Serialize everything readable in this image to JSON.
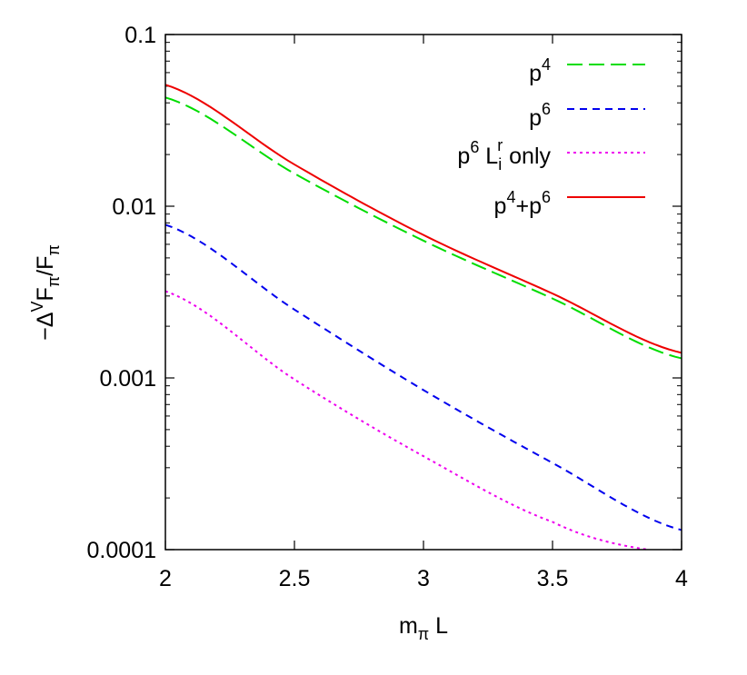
{
  "chart_data": {
    "type": "line",
    "title": "",
    "xlabel": {
      "main": "m",
      "sub": "π",
      "rest": " L"
    },
    "ylabel": {
      "pre": "−Δ",
      "sup": "V",
      "mid": "F",
      "sub1": "π",
      "slash": "/F",
      "sub2": "π"
    },
    "xlim": [
      2,
      4
    ],
    "ylim": [
      0.0001,
      0.1
    ],
    "y_scale": "log",
    "x_ticks": [
      {
        "value": 2,
        "label": "2"
      },
      {
        "value": 2.5,
        "label": "2.5"
      },
      {
        "value": 3,
        "label": "3"
      },
      {
        "value": 3.5,
        "label": "3.5"
      },
      {
        "value": 4,
        "label": "4"
      }
    ],
    "y_ticks": [
      {
        "value": 0.1,
        "label": "0.1"
      },
      {
        "value": 0.01,
        "label": "0.01"
      },
      {
        "value": 0.001,
        "label": "0.001"
      },
      {
        "value": 0.0001,
        "label": "0.0001"
      }
    ],
    "grid": false,
    "legend_position": "top-right",
    "series": [
      {
        "id": "p4",
        "legend": {
          "base": "p",
          "sup": "4"
        },
        "color": "#00dd00",
        "dash": "long-dash",
        "x": [
          2.0,
          2.5,
          3.0,
          3.5,
          4.0
        ],
        "y": [
          0.043,
          0.0155,
          0.0063,
          0.0029,
          0.0013
        ]
      },
      {
        "id": "p6",
        "legend": {
          "base": "p",
          "sup": "6"
        },
        "color": "#0000ee",
        "dash": "dash",
        "x": [
          2.0,
          2.5,
          3.0,
          3.5,
          4.0
        ],
        "y": [
          0.0078,
          0.0025,
          0.00085,
          0.00032,
          0.00013
        ]
      },
      {
        "id": "p6L",
        "legend": {
          "base": "p",
          "sup": "6",
          "mid": " L",
          "sub": "i",
          "sup2": "r",
          "rest": " only"
        },
        "color": "#ee00ee",
        "dash": "dot",
        "x": [
          2.0,
          2.5,
          3.0,
          3.5,
          3.87
        ],
        "y": [
          0.0032,
          0.00098,
          0.00035,
          0.000145,
          0.0001
        ]
      },
      {
        "id": "p4p6",
        "legend": {
          "base": "p",
          "sup": "4",
          "plus": "+p",
          "sup2": "6"
        },
        "color": "#ee0000",
        "dash": "solid",
        "x": [
          2.0,
          2.5,
          3.0,
          3.5,
          4.0
        ],
        "y": [
          0.051,
          0.0175,
          0.0068,
          0.0031,
          0.0014
        ]
      }
    ]
  }
}
